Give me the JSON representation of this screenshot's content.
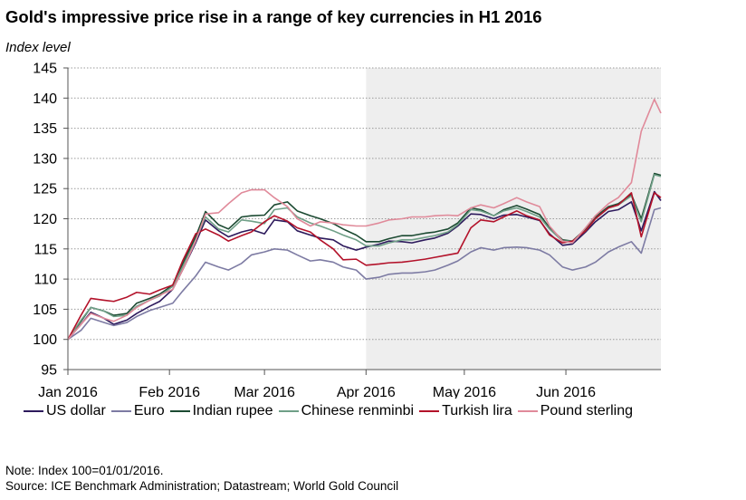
{
  "chart_data": {
    "type": "line",
    "title": "Gold's impressive price rise in a range of key currencies in H1 2016",
    "ylabel": "Index level",
    "xlabel": "",
    "ylim": [
      95,
      145
    ],
    "yticks": [
      95,
      100,
      105,
      110,
      115,
      120,
      125,
      130,
      135,
      140,
      145
    ],
    "xlim": [
      "2016-01-01",
      "2016-06-30"
    ],
    "xticks": [
      {
        "date": "2016-01-01",
        "label": "Jan 2016"
      },
      {
        "date": "2016-02-01",
        "label": "Feb 2016"
      },
      {
        "date": "2016-03-01",
        "label": "Mar 2016"
      },
      {
        "date": "2016-04-01",
        "label": "Apr 2016"
      },
      {
        "date": "2016-05-01",
        "label": "May 2016"
      },
      {
        "date": "2016-06-01",
        "label": "Jun 2016"
      }
    ],
    "grid": "horizontal-dotted",
    "shaded_region": [
      "2016-04-01",
      "2016-06-30"
    ],
    "legend_position": "bottom",
    "x": [
      "2016-01-01",
      "2016-01-05",
      "2016-01-08",
      "2016-01-12",
      "2016-01-15",
      "2016-01-19",
      "2016-01-22",
      "2016-01-26",
      "2016-01-29",
      "2016-02-02",
      "2016-02-05",
      "2016-02-09",
      "2016-02-12",
      "2016-02-16",
      "2016-02-19",
      "2016-02-23",
      "2016-02-26",
      "2016-03-01",
      "2016-03-04",
      "2016-03-08",
      "2016-03-11",
      "2016-03-15",
      "2016-03-18",
      "2016-03-22",
      "2016-03-25",
      "2016-03-29",
      "2016-04-01",
      "2016-04-05",
      "2016-04-08",
      "2016-04-12",
      "2016-04-15",
      "2016-04-19",
      "2016-04-22",
      "2016-04-26",
      "2016-04-29",
      "2016-05-03",
      "2016-05-06",
      "2016-05-10",
      "2016-05-13",
      "2016-05-17",
      "2016-05-20",
      "2016-05-24",
      "2016-05-27",
      "2016-05-31",
      "2016-06-03",
      "2016-06-07",
      "2016-06-10",
      "2016-06-14",
      "2016-06-17",
      "2016-06-21",
      "2016-06-24",
      "2016-06-28",
      "2016-06-30"
    ],
    "series": [
      {
        "name": "US dollar",
        "color": "#2d1a5c",
        "values": [
          100,
          102.5,
          104.5,
          103.5,
          102.5,
          103.2,
          104.3,
          105.5,
          106.3,
          108.3,
          111.5,
          116,
          119.8,
          118,
          117,
          117.8,
          118.2,
          117.5,
          119.8,
          119.5,
          118,
          117.3,
          116.8,
          116.5,
          115.5,
          114.8,
          115.3,
          115.8,
          116.3,
          116.2,
          116,
          116.5,
          116.8,
          117.6,
          118.8,
          120.8,
          120.7,
          120,
          120.6,
          120.7,
          120.3,
          119.7,
          117.5,
          115.6,
          115.8,
          117.8,
          119.5,
          121.2,
          121.5,
          122.8,
          118,
          124.5,
          123
        ]
      },
      {
        "name": "Euro",
        "color": "#7d7ba3",
        "values": [
          100,
          101.5,
          103.5,
          102.8,
          102.3,
          102.8,
          103.8,
          104.8,
          105.3,
          106,
          108,
          110.5,
          112.8,
          112,
          111.5,
          112.6,
          114,
          114.5,
          115,
          114.8,
          114,
          113,
          113.2,
          112.8,
          112,
          111.5,
          110,
          110.3,
          110.8,
          111,
          111,
          111.2,
          111.5,
          112.3,
          113,
          114.5,
          115.2,
          114.8,
          115.2,
          115.3,
          115.2,
          114.8,
          114,
          112,
          111.5,
          112,
          112.8,
          114.5,
          115.3,
          116.2,
          114.3,
          121.5,
          121.8
        ]
      },
      {
        "name": "Indian rupee",
        "color": "#1c4a32",
        "values": [
          100,
          103,
          105.3,
          104.7,
          104,
          104.3,
          106,
          106.8,
          107.5,
          109,
          112.5,
          117,
          121.2,
          119,
          118.3,
          120.3,
          120.5,
          120.6,
          122.3,
          122.8,
          121.3,
          120.5,
          120,
          119.2,
          118.3,
          117.3,
          116.2,
          116.2,
          116.7,
          117.2,
          117.2,
          117.6,
          117.8,
          118.3,
          119.3,
          121.8,
          121.5,
          120.5,
          121.5,
          122.2,
          121.6,
          120.7,
          118.5,
          116.5,
          116.3,
          118.3,
          120.3,
          122,
          122.5,
          124,
          120,
          127.5,
          127.2
        ]
      },
      {
        "name": "Chinese renminbi",
        "color": "#6f9f87",
        "values": [
          100,
          103.2,
          105.3,
          104.7,
          103.8,
          104,
          105.5,
          106.5,
          107.2,
          108.8,
          112,
          116.5,
          120.3,
          118.3,
          117.8,
          119.8,
          119.6,
          119.2,
          121.5,
          121.8,
          120.3,
          119.3,
          118.8,
          118,
          117.3,
          116.5,
          115.5,
          115.5,
          116,
          116.5,
          116.5,
          116.9,
          117.2,
          117.8,
          119,
          121.5,
          121.3,
          120.5,
          121.3,
          121.8,
          121.2,
          120.3,
          118.3,
          116.3,
          116.3,
          118,
          120,
          121.8,
          122.3,
          123.8,
          119.5,
          127.3,
          127
        ]
      },
      {
        "name": "Turkish lira",
        "color": "#b3122a",
        "values": [
          100,
          104,
          106.8,
          106.5,
          106.3,
          107,
          107.8,
          107.5,
          108.2,
          109,
          113,
          117.5,
          118.3,
          117.3,
          116.3,
          117.2,
          117.8,
          119.5,
          120.5,
          119.6,
          118.5,
          117.8,
          116.5,
          115,
          113.2,
          113.3,
          112.3,
          112.5,
          112.7,
          112.8,
          113,
          113.3,
          113.6,
          114,
          114.3,
          118.5,
          119.8,
          119.5,
          120.3,
          121.3,
          120.5,
          119.8,
          117.3,
          116,
          116.3,
          118,
          120,
          121.8,
          122.3,
          124.3,
          117,
          124.3,
          123.5
        ]
      },
      {
        "name": "Pound sterling",
        "color": "#e08a9a",
        "values": [
          100,
          102.5,
          104.3,
          103.5,
          103,
          104,
          105.3,
          106.5,
          107.3,
          108.3,
          111.5,
          116.3,
          120.8,
          121,
          122.5,
          124.3,
          124.8,
          124.8,
          123.5,
          122,
          120,
          118.8,
          119.5,
          119.3,
          119,
          118.8,
          118.8,
          119.3,
          119.8,
          120,
          120.3,
          120.3,
          120.5,
          120.6,
          120.5,
          121.8,
          122.3,
          121.8,
          122.5,
          123.5,
          122.8,
          122,
          118.8,
          116.3,
          116,
          118.5,
          120.5,
          122.5,
          123.5,
          126,
          134.5,
          139.8,
          137.5
        ]
      }
    ]
  },
  "notes": {
    "line1": "Note: Index 100=01/01/2016.",
    "line2": "Source: ICE Benchmark Administration; Datastream; World Gold Council"
  }
}
